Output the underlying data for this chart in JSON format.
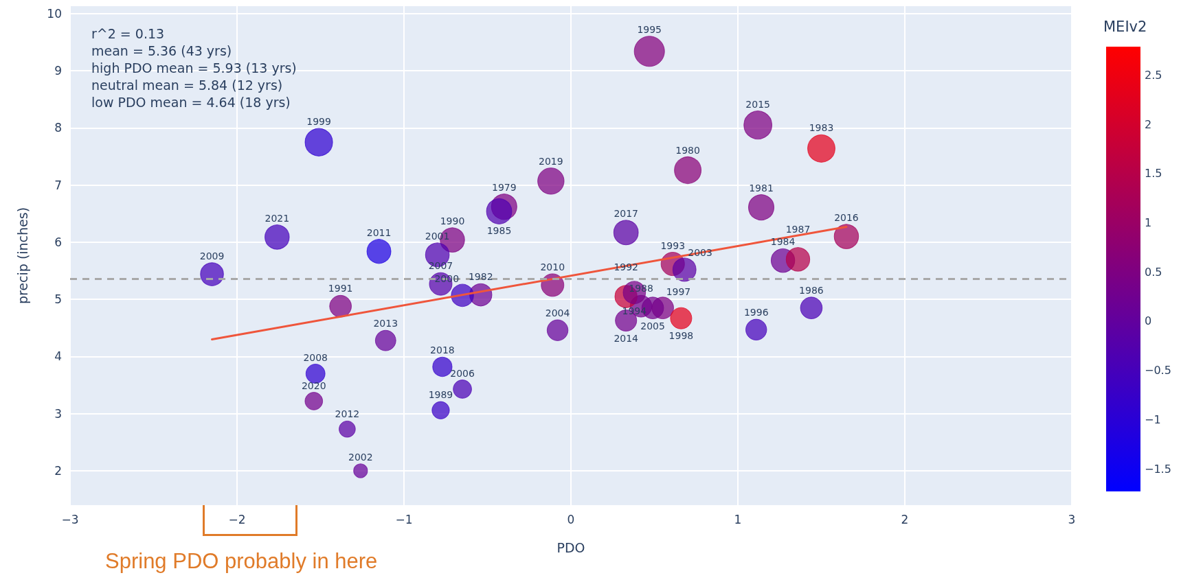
{
  "chart_data": {
    "type": "bubble",
    "xlabel": "PDO",
    "ylabel": "precip (inches)",
    "clabel": "MEIv2",
    "xlim": [
      -3,
      3
    ],
    "xticks": [
      -3,
      -2,
      -1,
      0,
      1,
      2,
      3
    ],
    "ylim": [
      1.4,
      10.13
    ],
    "yticks": [
      2,
      3,
      4,
      5,
      6,
      7,
      8,
      9,
      10
    ],
    "clim": [
      -1.73,
      2.79
    ],
    "cticks": [
      -1.5,
      -1,
      -0.5,
      0,
      0.5,
      1,
      1.5,
      2,
      2.5
    ],
    "grid": true,
    "marker": "circle",
    "annotations": [
      "r^2 = 0.13",
      "mean = 5.36 (43 yrs)",
      "high PDO mean = 5.93 (13 yrs)",
      "neutral mean = 5.84 (12 yrs)",
      "low PDO mean = 4.64 (18 yrs)",
      {
        "text": "1979",
        "x": -0.4,
        "y": 6.62
      },
      {
        "text": "1980",
        "x": 0.7,
        "y": 7.26
      },
      {
        "text": "1981",
        "x": 1.14,
        "y": 6.61
      },
      {
        "text": "1982",
        "x": -0.54,
        "y": 5.08
      },
      {
        "text": "1983",
        "x": 1.5,
        "y": 7.64
      },
      {
        "text": "1984",
        "x": 1.27,
        "y": 5.68
      },
      {
        "text": "1985",
        "x": -0.43,
        "y": 6.54
      },
      {
        "text": "1986",
        "x": 1.44,
        "y": 4.85
      },
      {
        "text": "1987",
        "x": 1.36,
        "y": 5.7
      },
      {
        "text": "1988",
        "x": 0.42,
        "y": 4.88
      },
      {
        "text": "1989",
        "x": -0.78,
        "y": 3.06
      },
      {
        "text": "1990",
        "x": -0.71,
        "y": 6.04
      },
      {
        "text": "1991",
        "x": -1.38,
        "y": 4.88
      },
      {
        "text": "1992",
        "x": 0.33,
        "y": 5.05
      },
      {
        "text": "1993",
        "x": 0.61,
        "y": 5.62
      },
      {
        "text": "1994",
        "x": 0.38,
        "y": 5.12
      },
      {
        "text": "1995",
        "x": 0.47,
        "y": 9.34
      },
      {
        "text": "1996",
        "x": 1.11,
        "y": 4.47
      },
      {
        "text": "1997",
        "x": 0.55,
        "y": 4.85
      },
      {
        "text": "1998",
        "x": 0.66,
        "y": 4.67
      },
      {
        "text": "1999",
        "x": -1.51,
        "y": 7.75
      },
      {
        "text": "2000",
        "x": -0.65,
        "y": 5.07
      },
      {
        "text": "2001",
        "x": -0.8,
        "y": 5.78
      },
      {
        "text": "2002",
        "x": -1.26,
        "y": 2.0
      },
      {
        "text": "2003",
        "x": 0.68,
        "y": 5.52
      },
      {
        "text": "2004",
        "x": -0.08,
        "y": 4.46
      },
      {
        "text": "2005",
        "x": 0.49,
        "y": 4.85
      },
      {
        "text": "2006",
        "x": -0.65,
        "y": 3.43
      },
      {
        "text": "2007",
        "x": -0.78,
        "y": 5.27
      },
      {
        "text": "2008",
        "x": -1.53,
        "y": 3.7
      },
      {
        "text": "2009",
        "x": -2.15,
        "y": 5.44
      },
      {
        "text": "2010",
        "x": -0.11,
        "y": 5.25
      },
      {
        "text": "2011",
        "x": -1.15,
        "y": 5.84
      },
      {
        "text": "2012",
        "x": -1.34,
        "y": 2.73
      },
      {
        "text": "2013",
        "x": -1.11,
        "y": 4.28
      },
      {
        "text": "2014",
        "x": 0.33,
        "y": 4.63
      },
      {
        "text": "2015",
        "x": 1.12,
        "y": 8.05
      },
      {
        "text": "2016",
        "x": 1.65,
        "y": 6.1
      },
      {
        "text": "2017",
        "x": 0.33,
        "y": 6.17
      },
      {
        "text": "2018",
        "x": -0.77,
        "y": 3.82
      },
      {
        "text": "2019",
        "x": -0.12,
        "y": 7.07
      },
      {
        "text": "2020",
        "x": -1.54,
        "y": 3.22
      },
      {
        "text": "2021",
        "x": -1.76,
        "y": 6.09
      },
      "Spring PDO probably in here"
    ],
    "ref_lines": [
      {
        "axis": "y",
        "value": 5.36,
        "color": "#a8a8a8",
        "line_style": "dashed"
      }
    ],
    "series": [
      {
        "x": [
          -0.4,
          0.7,
          1.14,
          -0.54,
          1.5,
          1.27,
          -0.43,
          1.44,
          1.36,
          0.42,
          -0.78,
          -0.71,
          -1.38,
          0.33,
          0.61,
          0.38,
          0.47,
          1.11,
          0.55,
          0.66,
          -1.51,
          -0.65,
          -0.8,
          -1.26,
          0.68,
          -0.08,
          0.49,
          -0.65,
          -0.78,
          -1.53,
          -2.15,
          -0.11,
          -1.15,
          -1.34,
          -1.11,
          0.33,
          1.12,
          1.65,
          0.33,
          -0.77,
          -0.12,
          -1.54,
          -1.76
        ],
        "values": [
          6.62,
          7.26,
          6.61,
          5.08,
          7.64,
          5.68,
          6.54,
          4.85,
          5.7,
          4.88,
          3.06,
          6.04,
          4.88,
          5.05,
          5.62,
          5.12,
          9.34,
          4.47,
          4.85,
          4.67,
          7.75,
          5.07,
          5.78,
          2.0,
          5.52,
          4.46,
          4.85,
          3.43,
          5.27,
          3.7,
          5.44,
          5.25,
          5.84,
          2.73,
          4.28,
          4.63,
          8.05,
          6.1,
          6.17,
          3.82,
          7.07,
          3.22,
          6.09
        ],
        "sizes": [
          0.71,
          0.78,
          0.71,
          0.54,
          0.82,
          0.61,
          0.7,
          0.52,
          0.61,
          0.52,
          0.33,
          0.65,
          0.52,
          0.54,
          0.6,
          0.55,
          1,
          0.48,
          0.52,
          0.5,
          0.83,
          0.54,
          0.62,
          0.21,
          0.59,
          0.48,
          0.52,
          0.37,
          0.56,
          0.4,
          0.58,
          0.56,
          0.63,
          0.29,
          0.46,
          0.5,
          0.86,
          0.65,
          0.66,
          0.41,
          0.76,
          0.34,
          0.65
        ],
        "cvalues": [
          0.5,
          0.7,
          0.5,
          0.2,
          2.3,
          0.2,
          -0.3,
          -0.4,
          1.5,
          0.3,
          -0.7,
          0.5,
          0.5,
          1.8,
          1.2,
          0.4,
          0.6,
          -0.5,
          0.5,
          2.3,
          -0.9,
          -0.6,
          -0.3,
          0.1,
          -0.1,
          0.1,
          0.3,
          -0.4,
          -0.2,
          -0.9,
          -0.5,
          0.7,
          -1.2,
          -0.1,
          0.1,
          0.3,
          0.5,
          1.2,
          -0.1,
          -0.8,
          0.5,
          0.3,
          -0.5
        ],
        "colors": [
          "#7e0081",
          "#890076",
          "#7e0081",
          "#6d0092",
          "#e3001c",
          "#6d0092",
          "#5100ae",
          "#4b00b4",
          "#b60049",
          "#73008c",
          "#3a00c5",
          "#7e0081",
          "#7e0081",
          "#c70038",
          "#a5005a",
          "#780087",
          "#83007c",
          "#4500ba",
          "#7e0081",
          "#e3001c",
          "#2f00d0",
          "#4000bf",
          "#5100ae",
          "#670098",
          "#5c00a3",
          "#670098",
          "#73008c",
          "#4b00b4",
          "#5600a9",
          "#2f00d0",
          "#4500ba",
          "#890076",
          "#1e00e1",
          "#5c00a3",
          "#670098",
          "#73008c",
          "#7e0081",
          "#a5005a",
          "#5c00a3",
          "#3400ca",
          "#7e0081",
          "#73008c",
          "#4500ba"
        ]
      },
      {
        "type": "line",
        "color": "#ef553b",
        "marker": "none",
        "x": [
          -2.15,
          1.65
        ],
        "values": [
          4.3,
          6.27
        ]
      }
    ]
  }
}
